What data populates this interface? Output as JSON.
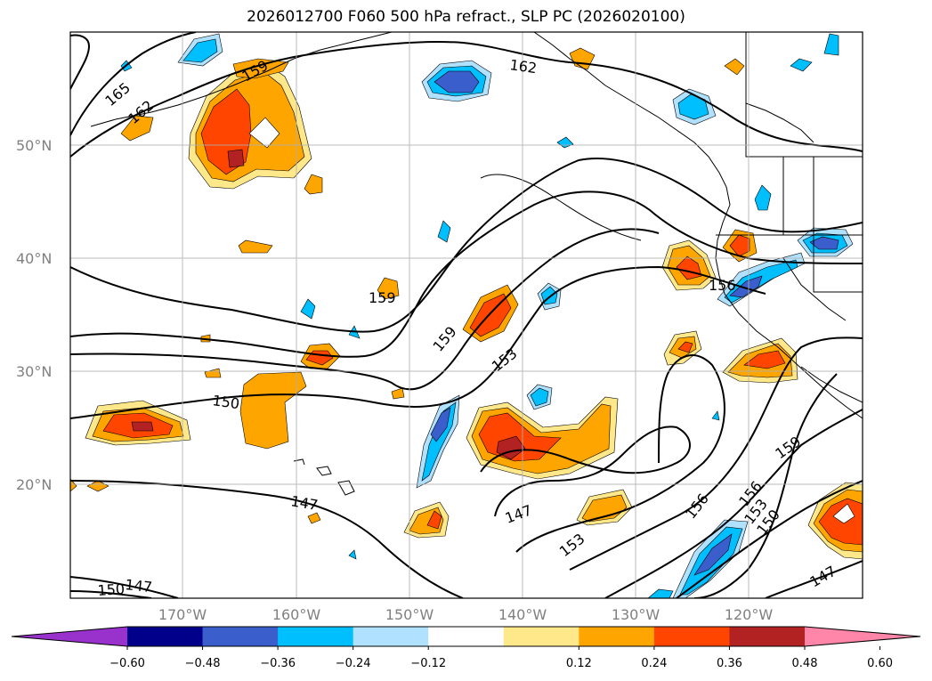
{
  "title": "2026012700 F060 500 hPa refract., SLP PC (2026020100)",
  "map": {
    "lat_ticks": [
      "50°N",
      "40°N",
      "30°N",
      "20°N"
    ],
    "lon_ticks": [
      "170°W",
      "160°W",
      "150°W",
      "140°W",
      "130°W",
      "120°W"
    ],
    "contour_labels": [
      "165",
      "162",
      "159",
      "162",
      "159",
      "156",
      "159",
      "153",
      "150",
      "147",
      "147",
      "153",
      "156",
      "156",
      "153",
      "150",
      "159",
      "147",
      "150",
      "147"
    ],
    "grid": true
  },
  "colorbar": {
    "ticks": [
      "−0.60",
      "−0.48",
      "−0.36",
      "−0.24",
      "−0.12",
      "0.12",
      "0.24",
      "0.36",
      "0.48",
      "0.60"
    ],
    "colors": [
      "#9932CC",
      "#00008B",
      "#3A5FCD",
      "#00BFFF",
      "#B0E2FF",
      "#FFFFFF",
      "#FFE88A",
      "#FFA500",
      "#FF4500",
      "#B22222",
      "#FF86A8"
    ]
  }
}
